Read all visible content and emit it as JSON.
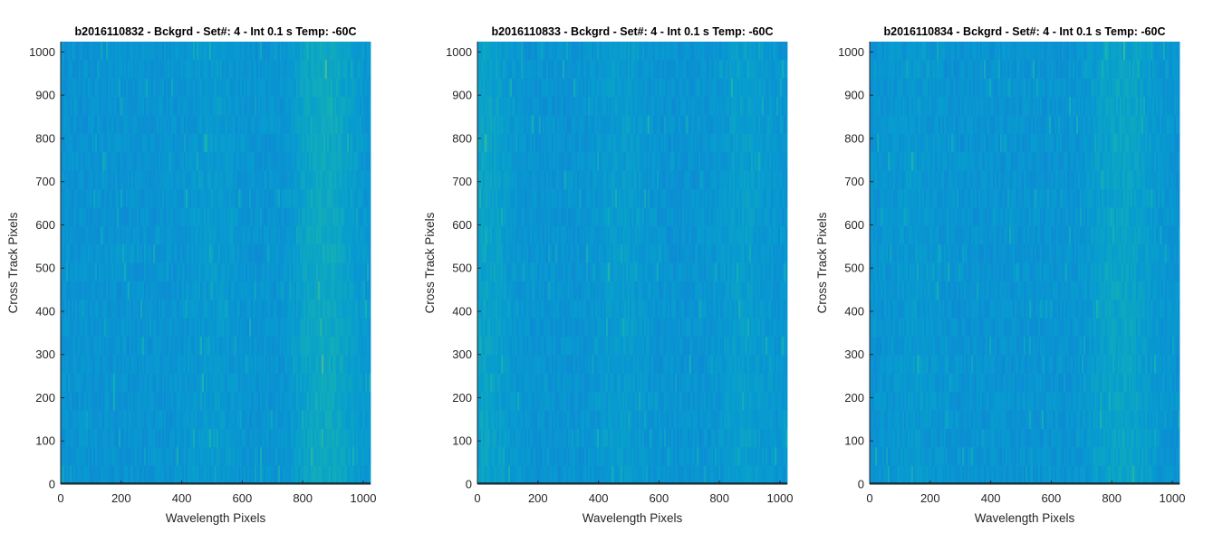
{
  "chart_data": [
    {
      "type": "heatmap",
      "title": "b2016110832 - Bckgrd - Set#: 4 - Int 0.1 s Temp: -60C",
      "xlabel": "Wavelength Pixels",
      "ylabel": "Cross Track Pixels",
      "xlim": [
        0,
        1024
      ],
      "ylim": [
        0,
        1024
      ],
      "xticks": [
        0,
        200,
        400,
        600,
        800,
        1000
      ],
      "yticks": [
        0,
        100,
        200,
        300,
        400,
        500,
        600,
        700,
        800,
        900,
        1000
      ],
      "colormap": "parula",
      "bright_bands": [
        [
          500,
          0.35
        ],
        [
          840,
          0.85
        ],
        [
          920,
          0.7
        ]
      ]
    },
    {
      "type": "heatmap",
      "title": "b2016110833 - Bckgrd - Set#: 4 - Int 0.1 s Temp: -60C",
      "xlabel": "Wavelength Pixels",
      "ylabel": "Cross Track Pixels",
      "xlim": [
        0,
        1024
      ],
      "ylim": [
        0,
        1024
      ],
      "xticks": [
        0,
        200,
        400,
        600,
        800,
        1000
      ],
      "yticks": [
        0,
        100,
        200,
        300,
        400,
        500,
        600,
        700,
        800,
        900,
        1000
      ],
      "colormap": "parula",
      "bright_bands": [
        [
          30,
          0.8
        ],
        [
          480,
          0.45
        ],
        [
          880,
          0.55
        ]
      ]
    },
    {
      "type": "heatmap",
      "title": "b2016110834 - Bckgrd - Set#: 4 - Int 0.1 s Temp: -60C",
      "xlabel": "Wavelength Pixels",
      "ylabel": "Cross Track Pixels",
      "xlim": [
        0,
        1024
      ],
      "ylim": [
        0,
        1024
      ],
      "xticks": [
        0,
        200,
        400,
        600,
        800,
        1000
      ],
      "yticks": [
        0,
        100,
        200,
        300,
        400,
        500,
        600,
        700,
        800,
        900,
        1000
      ],
      "colormap": "parula",
      "bright_bands": [
        [
          150,
          0.3
        ],
        [
          800,
          0.65
        ],
        [
          880,
          0.5
        ]
      ]
    }
  ]
}
